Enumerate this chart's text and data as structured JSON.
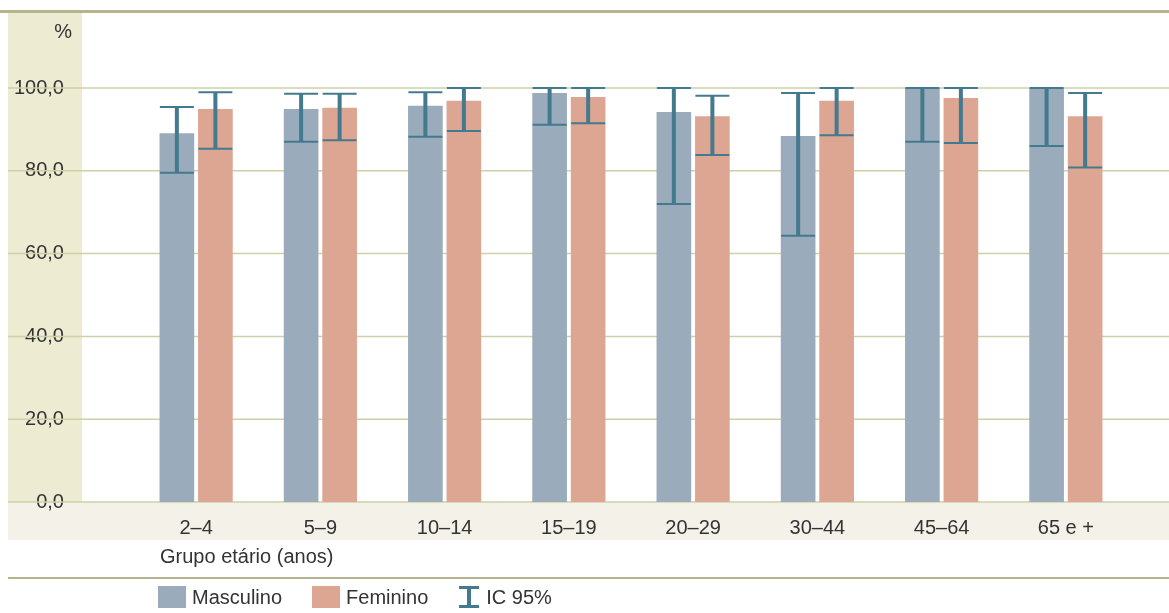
{
  "chart_data": {
    "type": "bar",
    "ylabel": "%",
    "xlabel": "Grupo etário (anos)",
    "categories": [
      "2–4",
      "5–9",
      "10–14",
      "15–19",
      "20–29",
      "30–44",
      "45–64",
      "65 e +"
    ],
    "series": [
      {
        "name": "Masculino",
        "color": "#9aabbb",
        "values": [
          89.1,
          94.9,
          95.7,
          98.8,
          94.2,
          88.4,
          100,
          100
        ],
        "errors": [
          [
            79.5,
            95.4
          ],
          [
            87.0,
            98.6
          ],
          [
            88.2,
            99.0
          ],
          [
            91.1,
            100
          ],
          [
            72.0,
            100
          ],
          [
            64.3,
            98.8
          ],
          [
            87.0,
            100
          ],
          [
            86.0,
            100
          ]
        ]
      },
      {
        "name": "Feminino",
        "color": "#dca692",
        "values": [
          94.9,
          95.2,
          96.9,
          97.8,
          93.2,
          96.9,
          97.6,
          93.2
        ],
        "errors": [
          [
            85.3,
            99.0
          ],
          [
            87.4,
            98.6
          ],
          [
            89.6,
            100
          ],
          [
            91.5,
            100
          ],
          [
            83.8,
            98.1
          ],
          [
            88.6,
            100
          ],
          [
            86.7,
            100
          ],
          [
            80.8,
            98.8
          ]
        ]
      }
    ],
    "ylim": [
      0,
      100
    ],
    "yticks": [
      {
        "value": 0,
        "label": "0,0"
      },
      {
        "value": 20,
        "label": "20,0"
      },
      {
        "value": 40,
        "label": "40,0"
      },
      {
        "value": 60,
        "label": "60,0"
      },
      {
        "value": 80,
        "label": "80,0"
      },
      {
        "value": 100,
        "label": "100,0"
      }
    ],
    "grid": "y",
    "legend": "bottom",
    "annotations": [
      "IC 95%"
    ]
  }
}
